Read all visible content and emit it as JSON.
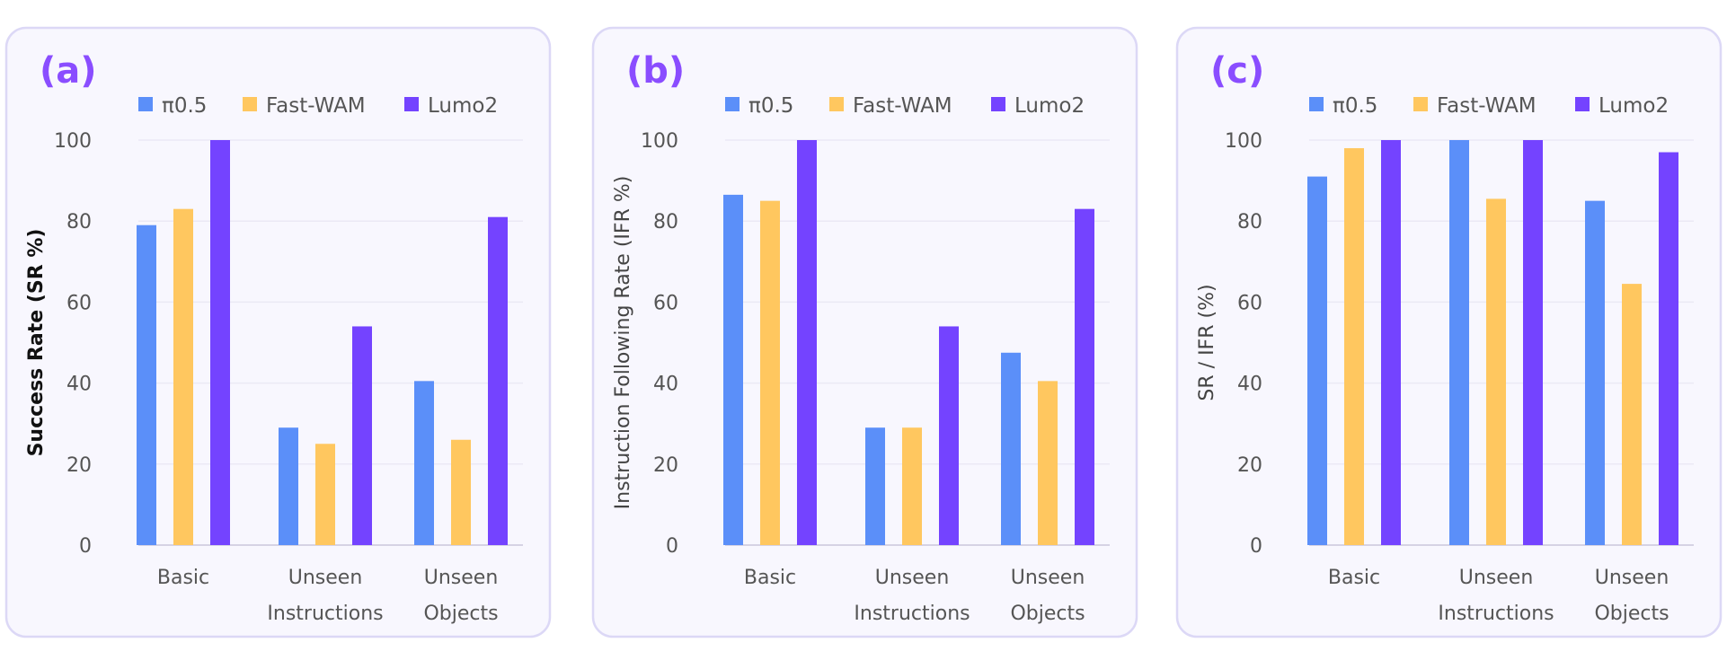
{
  "colors": {
    "accent": "#8a4dff",
    "panel_bg": "#f8f7fe",
    "panel_border": "#dcd8f6"
  },
  "chart_data": [
    {
      "type": "bar",
      "panel_label": "(a)",
      "ylabel": "Success Rate (SR %)",
      "categories": [
        [
          "Basic"
        ],
        [
          "Unseen",
          "Instructions"
        ],
        [
          "Unseen",
          "Objects"
        ]
      ],
      "ylim": [
        0,
        100
      ],
      "yticks": [
        0,
        20,
        40,
        60,
        80,
        100
      ],
      "grid": true,
      "legend": "top",
      "series": [
        {
          "name": "π0.5",
          "color": "#5b8ff9",
          "values": [
            79,
            29,
            40.5
          ]
        },
        {
          "name": "Fast-WAM",
          "color": "#ffc75f",
          "values": [
            83,
            25,
            26
          ]
        },
        {
          "name": "Lumo2",
          "color": "#7443ff",
          "values": [
            100,
            54,
            81
          ]
        }
      ]
    },
    {
      "type": "bar",
      "panel_label": "(b)",
      "ylabel": "Instruction Following Rate (IFR %)",
      "categories": [
        [
          "Basic"
        ],
        [
          "Unseen",
          "Instructions"
        ],
        [
          "Unseen",
          "Objects"
        ]
      ],
      "ylim": [
        0,
        100
      ],
      "yticks": [
        0,
        20,
        40,
        60,
        80,
        100
      ],
      "grid": true,
      "legend": "top",
      "series": [
        {
          "name": "π0.5",
          "color": "#5b8ff9",
          "values": [
            86.5,
            29,
            47.5
          ]
        },
        {
          "name": "Fast-WAM",
          "color": "#ffc75f",
          "values": [
            85,
            29,
            40.5
          ]
        },
        {
          "name": "Lumo2",
          "color": "#7443ff",
          "values": [
            100,
            54,
            83
          ]
        }
      ]
    },
    {
      "type": "bar",
      "panel_label": "(c)",
      "ylabel": "SR / IFR (%)",
      "categories": [
        [
          "Basic"
        ],
        [
          "Unseen",
          "Instructions"
        ],
        [
          "Unseen",
          "Objects"
        ]
      ],
      "ylim": [
        0,
        100
      ],
      "yticks": [
        0,
        20,
        40,
        60,
        80,
        100
      ],
      "grid": true,
      "legend": "top",
      "series": [
        {
          "name": "π0.5",
          "color": "#5b8ff9",
          "values": [
            91,
            100,
            85
          ]
        },
        {
          "name": "Fast-WAM",
          "color": "#ffc75f",
          "values": [
            98,
            85.5,
            64.5
          ]
        },
        {
          "name": "Lumo2",
          "color": "#7443ff",
          "values": [
            100,
            100,
            97
          ]
        }
      ]
    }
  ]
}
